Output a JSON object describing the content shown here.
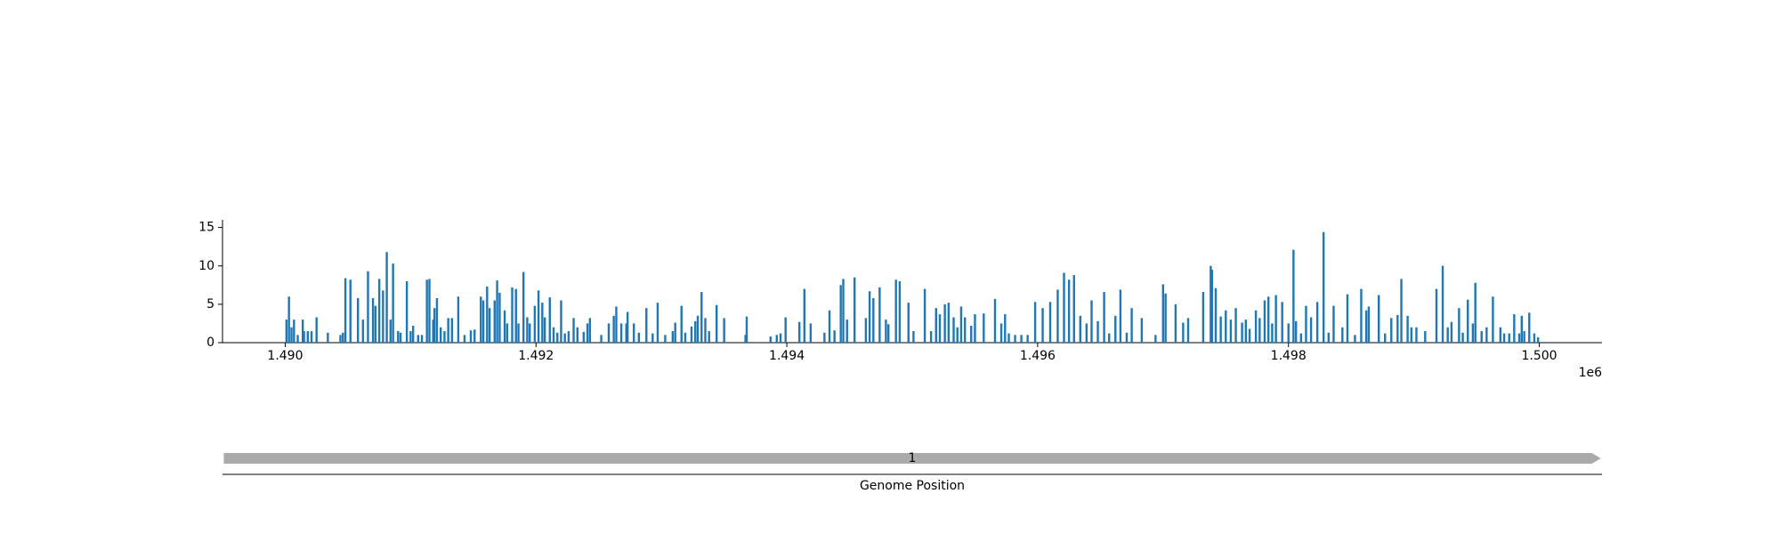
{
  "chart_data": {
    "type": "bar",
    "color": "#1f77b4",
    "x": [
      1490010,
      1490030,
      1490050,
      1490070,
      1490100,
      1490140,
      1490150,
      1490180,
      1490210,
      1490250,
      1490340,
      1490440,
      1490460,
      1490480,
      1490520,
      1490580,
      1490620,
      1490660,
      1490700,
      1490720,
      1490750,
      1490780,
      1490810,
      1490840,
      1490860,
      1490900,
      1490920,
      1490970,
      1491000,
      1491020,
      1491060,
      1491090,
      1491130,
      1491150,
      1491180,
      1491190,
      1491210,
      1491240,
      1491270,
      1491300,
      1491330,
      1491380,
      1491430,
      1491480,
      1491510,
      1491560,
      1491580,
      1491610,
      1491630,
      1491670,
      1491690,
      1491710,
      1491750,
      1491770,
      1491810,
      1491840,
      1491860,
      1491900,
      1491930,
      1491950,
      1491990,
      1492020,
      1492050,
      1492070,
      1492110,
      1492140,
      1492170,
      1492200,
      1492230,
      1492260,
      1492300,
      1492330,
      1492380,
      1492410,
      1492430,
      1492520,
      1492580,
      1492620,
      1492640,
      1492680,
      1492720,
      1492730,
      1492780,
      1492820,
      1492880,
      1492930,
      1492970,
      1493030,
      1493090,
      1493110,
      1493160,
      1493190,
      1493240,
      1493270,
      1493290,
      1493320,
      1493350,
      1493380,
      1493440,
      1493500,
      1493670,
      1493680,
      1493870,
      1493920,
      1493950,
      1493990,
      1494100,
      1494140,
      1494190,
      1494300,
      1494340,
      1494380,
      1494430,
      1494450,
      1494480,
      1494540,
      1494630,
      1494660,
      1494690,
      1494740,
      1494790,
      1494810,
      1494870,
      1494900,
      1494970,
      1495010,
      1495100,
      1495150,
      1495190,
      1495220,
      1495260,
      1495290,
      1495330,
      1495360,
      1495390,
      1495420,
      1495470,
      1495500,
      1495570,
      1495660,
      1495710,
      1495740,
      1495770,
      1495820,
      1495870,
      1495920,
      1495980,
      1496040,
      1496100,
      1496160,
      1496210,
      1496250,
      1496290,
      1496340,
      1496390,
      1496430,
      1496480,
      1496530,
      1496570,
      1496620,
      1496660,
      1496710,
      1496750,
      1496830,
      1496940,
      1497000,
      1497020,
      1497100,
      1497160,
      1497200,
      1497320,
      1497380,
      1497390,
      1497420,
      1497460,
      1497500,
      1497540,
      1497580,
      1497630,
      1497660,
      1497690,
      1497740,
      1497770,
      1497810,
      1497840,
      1497870,
      1497900,
      1497950,
      1498000,
      1498040,
      1498060,
      1498100,
      1498140,
      1498180,
      1498230,
      1498280,
      1498320,
      1498360,
      1498430,
      1498470,
      1498530,
      1498580,
      1498620,
      1498640,
      1498720,
      1498770,
      1498820,
      1498870,
      1498900,
      1498950,
      1498980,
      1499020,
      1499090,
      1499180,
      1499230,
      1499270,
      1499300,
      1499360,
      1499390,
      1499430,
      1499470,
      1499490,
      1499540,
      1499580,
      1499630,
      1499690,
      1499720,
      1499760,
      1499800,
      1499840,
      1499860,
      1499880,
      1499920,
      1499960,
      1499990
    ],
    "values": [
      3,
      6,
      2,
      3,
      1,
      3,
      1.5,
      1.5,
      1.5,
      3.3,
      1.3,
      1,
      1.3,
      8.4,
      8.2,
      5.8,
      3,
      9.3,
      5.8,
      4.8,
      8.3,
      6.8,
      11.8,
      3,
      10.3,
      1.5,
      1.3,
      8,
      1.5,
      2.2,
      1,
      1,
      8.2,
      8.3,
      3,
      4.5,
      5.8,
      2,
      1.5,
      3.2,
      3.2,
      6,
      1,
      1.6,
      1.7,
      6,
      5.5,
      7.3,
      4.5,
      5.5,
      8.1,
      6.5,
      4.2,
      2.5,
      7.2,
      7,
      2.5,
      9.2,
      3.3,
      2.5,
      4.8,
      6.8,
      5.2,
      3.3,
      5.9,
      2,
      1.3,
      5.5,
      1.2,
      1.5,
      3.2,
      2,
      1.4,
      2.5,
      3.2,
      1,
      2.5,
      3.5,
      4.7,
      2.5,
      2.5,
      4,
      2.5,
      1.3,
      4.5,
      1.2,
      5.2,
      1,
      1.5,
      2.6,
      4.8,
      1.3,
      2.1,
      2.8,
      3.5,
      6.6,
      3.2,
      1.5,
      4.9,
      3.2,
      1,
      3.4,
      0.8,
      1,
      1.2,
      3.3,
      2.7,
      7,
      2.5,
      1.3,
      4.2,
      1.6,
      7.5,
      8.3,
      3,
      8.5,
      3.2,
      6.7,
      5.8,
      7.2,
      3,
      2.4,
      8.2,
      8,
      5.2,
      1.5,
      7,
      1.5,
      4.5,
      3.7,
      5,
      5.2,
      3.3,
      2,
      4.7,
      3.3,
      2.2,
      3.7,
      3.8,
      5.7,
      2.5,
      3.7,
      1.2,
      1,
      1,
      1,
      5.3,
      4.5,
      5.3,
      6.9,
      9.1,
      8.2,
      8.8,
      3.5,
      2.5,
      5.5,
      2.8,
      6.6,
      1.2,
      3.5,
      6.9,
      1.3,
      4.5,
      3.2,
      1,
      7.6,
      6.4,
      5,
      2.6,
      3.2,
      6.6,
      10,
      9.5,
      7.1,
      3.4,
      4.2,
      3,
      4.5,
      2.6,
      3,
      1.8,
      4.2,
      3.2,
      5.5,
      6,
      2.5,
      6.2,
      5.3,
      2.5,
      12.1,
      2.8,
      1.2,
      4.8,
      3.3,
      5.3,
      14.4,
      1.3,
      4.8,
      2,
      6.3,
      1,
      7,
      4.2,
      4.7,
      6.2,
      1.2,
      3.2,
      3.6,
      8.3,
      3.5,
      2,
      2,
      1.5,
      7,
      10,
      2,
      2.7,
      4.5,
      1.3,
      5.6,
      2.5,
      7.8,
      1.5,
      2,
      6,
      2,
      1.2,
      1.2,
      3.7,
      1.2,
      3.5,
      1.5,
      3.9,
      1.2,
      0.7
    ],
    "xlim": [
      1489500,
      1500500
    ],
    "xticks": [
      {
        "value": 1490000,
        "label": "1.490"
      },
      {
        "value": 1492000,
        "label": "1.492"
      },
      {
        "value": 1494000,
        "label": "1.494"
      },
      {
        "value": 1496000,
        "label": "1.496"
      },
      {
        "value": 1498000,
        "label": "1.498"
      },
      {
        "value": 1500000,
        "label": "1.500"
      }
    ],
    "x_offset_label": "1e6",
    "ylim": [
      0,
      16
    ],
    "yticks": [
      0,
      5,
      10,
      15
    ],
    "features": [
      {
        "label": "1",
        "start": 1489510,
        "end": 1500490,
        "color": "#aaaaaa"
      }
    ],
    "xlabel": "Genome Position"
  }
}
